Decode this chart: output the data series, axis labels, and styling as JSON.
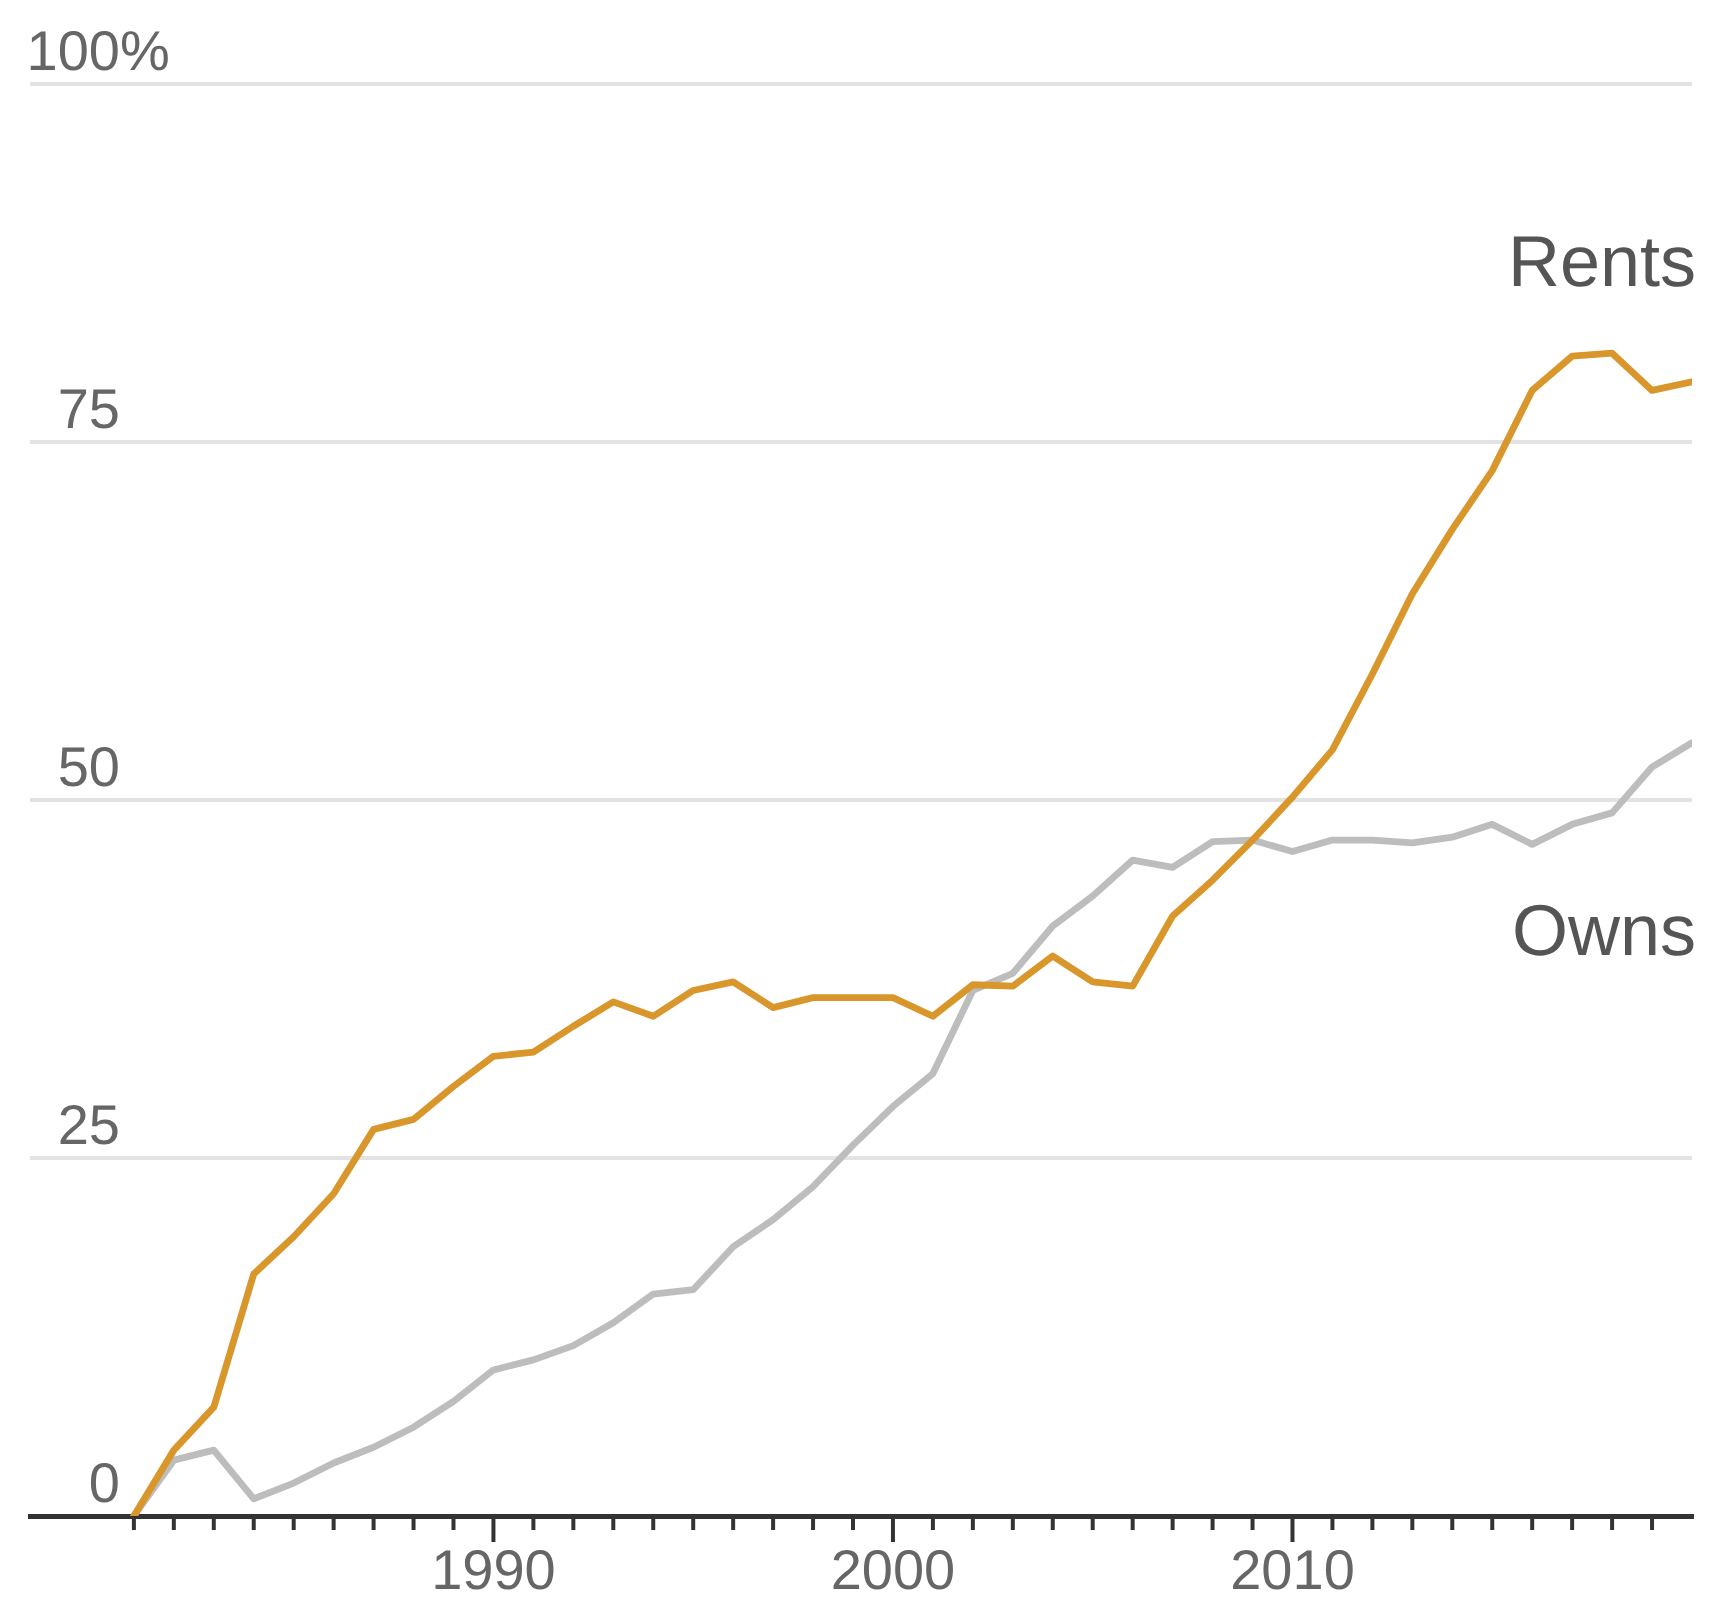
{
  "chart_data": {
    "type": "line",
    "x": [
      1981,
      1982,
      1983,
      1984,
      1985,
      1986,
      1987,
      1988,
      1989,
      1990,
      1991,
      1992,
      1993,
      1994,
      1995,
      1996,
      1997,
      1998,
      1999,
      2000,
      2001,
      2002,
      2003,
      2004,
      2005,
      2006,
      2007,
      2008,
      2009,
      2010,
      2011,
      2012,
      2013,
      2014,
      2015,
      2016,
      2017,
      2018,
      2019,
      2020
    ],
    "series": [
      {
        "name": "Rents",
        "color": "#d9962b",
        "values": [
          0,
          4.6,
          7.6,
          16.9,
          19.5,
          22.5,
          27.0,
          27.7,
          30.0,
          32.1,
          32.4,
          34.2,
          35.9,
          34.9,
          36.7,
          37.3,
          35.5,
          36.2,
          36.2,
          36.2,
          34.9,
          37.1,
          37.0,
          39.1,
          37.3,
          37.0,
          41.9,
          44.4,
          47.2,
          50.2,
          53.5,
          58.8,
          64.4,
          68.9,
          73.0,
          78.6,
          81.0,
          81.2,
          78.6,
          79.2
        ]
      },
      {
        "name": "Owns",
        "color": "#bdbdbd",
        "values": [
          0,
          3.9,
          4.6,
          1.2,
          2.3,
          3.7,
          4.8,
          6.2,
          8.0,
          10.2,
          10.9,
          11.9,
          13.5,
          15.5,
          15.8,
          18.8,
          20.7,
          23.0,
          25.9,
          28.6,
          30.9,
          36.7,
          37.9,
          41.2,
          43.3,
          45.8,
          45.3,
          47.1,
          47.2,
          46.4,
          47.2,
          47.2,
          47.0,
          47.4,
          48.3,
          46.9,
          48.3,
          49.1,
          52.3,
          54.0
        ]
      }
    ],
    "xlim": [
      1978.4,
      2020
    ],
    "xticks": [
      {
        "value": 1981,
        "label": null
      },
      {
        "value": 1982,
        "label": null
      },
      {
        "value": 1983,
        "label": null
      },
      {
        "value": 1984,
        "label": null
      },
      {
        "value": 1985,
        "label": null
      },
      {
        "value": 1986,
        "label": null
      },
      {
        "value": 1987,
        "label": null
      },
      {
        "value": 1988,
        "label": null
      },
      {
        "value": 1989,
        "label": null
      },
      1990,
      {
        "value": 1991,
        "label": null
      },
      {
        "value": 1992,
        "label": null
      },
      {
        "value": 1993,
        "label": null
      },
      {
        "value": 1994,
        "label": null
      },
      {
        "value": 1995,
        "label": null
      },
      {
        "value": 1996,
        "label": null
      },
      {
        "value": 1997,
        "label": null
      },
      {
        "value": 1998,
        "label": null
      },
      {
        "value": 1999,
        "label": null
      },
      2000,
      {
        "value": 2001,
        "label": null
      },
      {
        "value": 2002,
        "label": null
      },
      {
        "value": 2003,
        "label": null
      },
      {
        "value": 2004,
        "label": null
      },
      {
        "value": 2005,
        "label": null
      },
      {
        "value": 2006,
        "label": null
      },
      {
        "value": 2007,
        "label": null
      },
      {
        "value": 2008,
        "label": null
      },
      {
        "value": 2009,
        "label": null
      },
      2010,
      {
        "value": 2011,
        "label": null
      },
      {
        "value": 2012,
        "label": null
      },
      {
        "value": 2013,
        "label": null
      },
      {
        "value": 2014,
        "label": null
      },
      {
        "value": 2015,
        "label": null
      },
      {
        "value": 2016,
        "label": null
      },
      {
        "value": 2017,
        "label": null
      },
      {
        "value": 2018,
        "label": null
      },
      {
        "value": 2019,
        "label": null
      }
    ],
    "ylim": [
      0,
      100
    ],
    "yticks": [
      0,
      25,
      50,
      75,
      {
        "value": 100,
        "label": "100%"
      }
    ],
    "grid": "y"
  }
}
